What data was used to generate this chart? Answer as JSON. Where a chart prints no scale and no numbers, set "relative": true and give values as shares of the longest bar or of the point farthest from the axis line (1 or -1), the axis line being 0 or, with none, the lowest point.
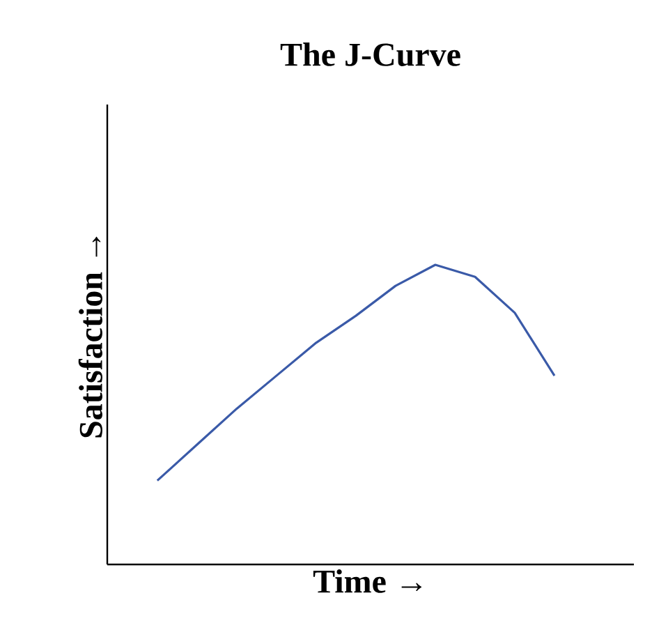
{
  "chart_data": {
    "type": "line",
    "title": "The J-Curve",
    "xlabel": "Time →",
    "ylabel": "Satisfaction →",
    "relative": true,
    "categories": [
      null,
      null,
      null,
      null,
      null,
      null,
      null,
      null,
      null,
      null,
      null
    ],
    "series": [
      {
        "color": "#3a5aa8",
        "values": [
          0.28,
          0.4,
          0.52,
          0.63,
          0.74,
          0.83,
          0.93,
          1.0,
          0.96,
          0.84,
          0.63
        ]
      }
    ]
  }
}
